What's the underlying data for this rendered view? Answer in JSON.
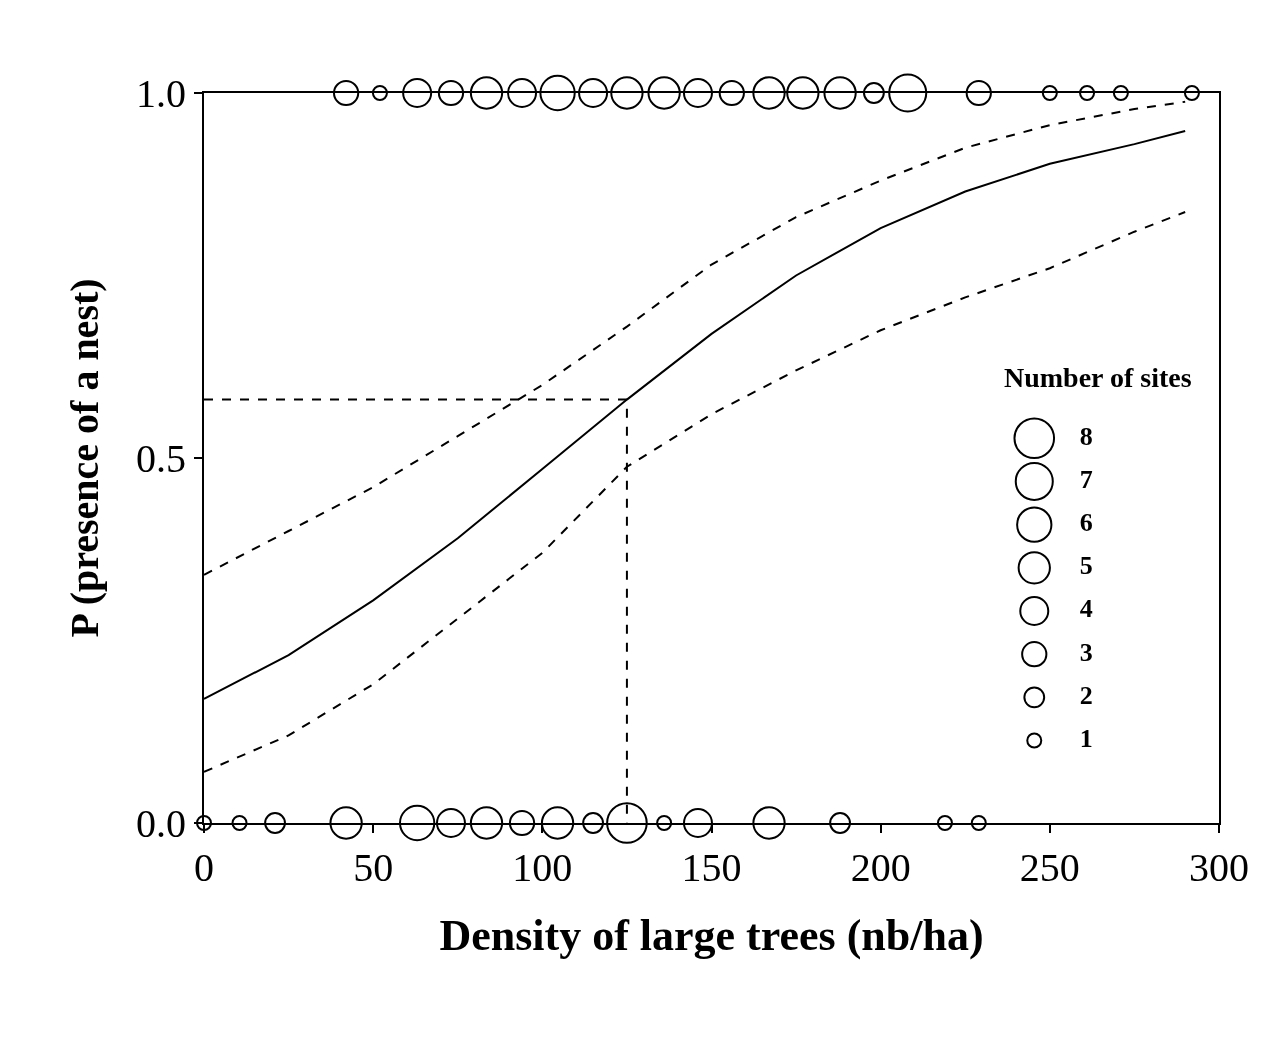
{
  "chart_data": {
    "type": "bubble",
    "xlabel": "Density of large trees (nb/ha)",
    "ylabel": "P (presence of a nest)",
    "legend_title": "Number of sites",
    "xlim": [
      0,
      300
    ],
    "xticks": [
      0,
      50,
      100,
      150,
      200,
      250,
      300
    ],
    "ylim": [
      0,
      1
    ],
    "yticks": [
      {
        "value": 0,
        "label": "0.0"
      },
      {
        "value": 0.5,
        "label": "0.5"
      },
      {
        "value": 1,
        "label": "1.0"
      }
    ],
    "size_legend": [
      8,
      7,
      6,
      5,
      4,
      3,
      2,
      1
    ],
    "series": [
      {
        "marker": "circle",
        "color": "#000000",
        "x": [
          42,
          52,
          63,
          73,
          83.5,
          94,
          104.5,
          115,
          125,
          136,
          146,
          156,
          167,
          177,
          188,
          198,
          208,
          229,
          250,
          261,
          271,
          292
        ],
        "values": [
          1,
          1,
          1,
          1,
          1,
          1,
          1,
          1,
          1,
          1,
          1,
          1,
          1,
          1,
          1,
          1,
          1,
          1,
          1,
          1,
          1,
          1
        ],
        "sizes": [
          3,
          1,
          4,
          3,
          5,
          4,
          6,
          4,
          5,
          5,
          4,
          3,
          5,
          5,
          5,
          2,
          7,
          3,
          1,
          1,
          1,
          1
        ]
      },
      {
        "marker": "circle",
        "color": "#000000",
        "x": [
          0,
          10.5,
          21,
          42,
          63,
          73,
          83.5,
          94,
          104.5,
          115,
          125,
          136,
          146,
          167,
          188,
          219,
          229
        ],
        "values": [
          0,
          0,
          0,
          0,
          0,
          0,
          0,
          0,
          0,
          0,
          0,
          0,
          0,
          0,
          0,
          0,
          0
        ],
        "sizes": [
          1,
          1,
          2,
          5,
          6,
          4,
          5,
          3,
          5,
          2,
          8,
          1,
          4,
          5,
          2,
          1,
          1
        ]
      },
      {
        "type": "line",
        "color": "#000000",
        "line_style": "solid",
        "x": [
          0,
          25,
          50,
          75,
          100,
          125,
          150,
          175,
          200,
          225,
          250,
          275,
          290
        ],
        "values": [
          0.17,
          0.23,
          0.305,
          0.39,
          0.485,
          0.58,
          0.67,
          0.75,
          0.815,
          0.865,
          0.903,
          0.93,
          0.948
        ]
      },
      {
        "type": "line",
        "color": "#000000",
        "line_style": "dashed",
        "x": [
          0,
          25,
          50,
          75,
          100,
          125,
          150,
          175,
          200,
          225,
          250,
          275,
          290
        ],
        "values": [
          0.34,
          0.4,
          0.46,
          0.53,
          0.6,
          0.68,
          0.765,
          0.83,
          0.88,
          0.925,
          0.956,
          0.978,
          0.988
        ]
      },
      {
        "type": "line",
        "color": "#000000",
        "line_style": "dashed",
        "x": [
          0,
          25,
          50,
          75,
          100,
          125,
          150,
          175,
          200,
          225,
          250,
          275,
          290
        ],
        "values": [
          0.07,
          0.12,
          0.19,
          0.28,
          0.37,
          0.488,
          0.56,
          0.62,
          0.675,
          0.72,
          0.76,
          0.81,
          0.837
        ]
      },
      {
        "type": "line",
        "color": "#000000",
        "line_style": "dashed",
        "x": [
          0,
          125,
          125
        ],
        "values": [
          0.58,
          0.58,
          0
        ]
      }
    ]
  }
}
